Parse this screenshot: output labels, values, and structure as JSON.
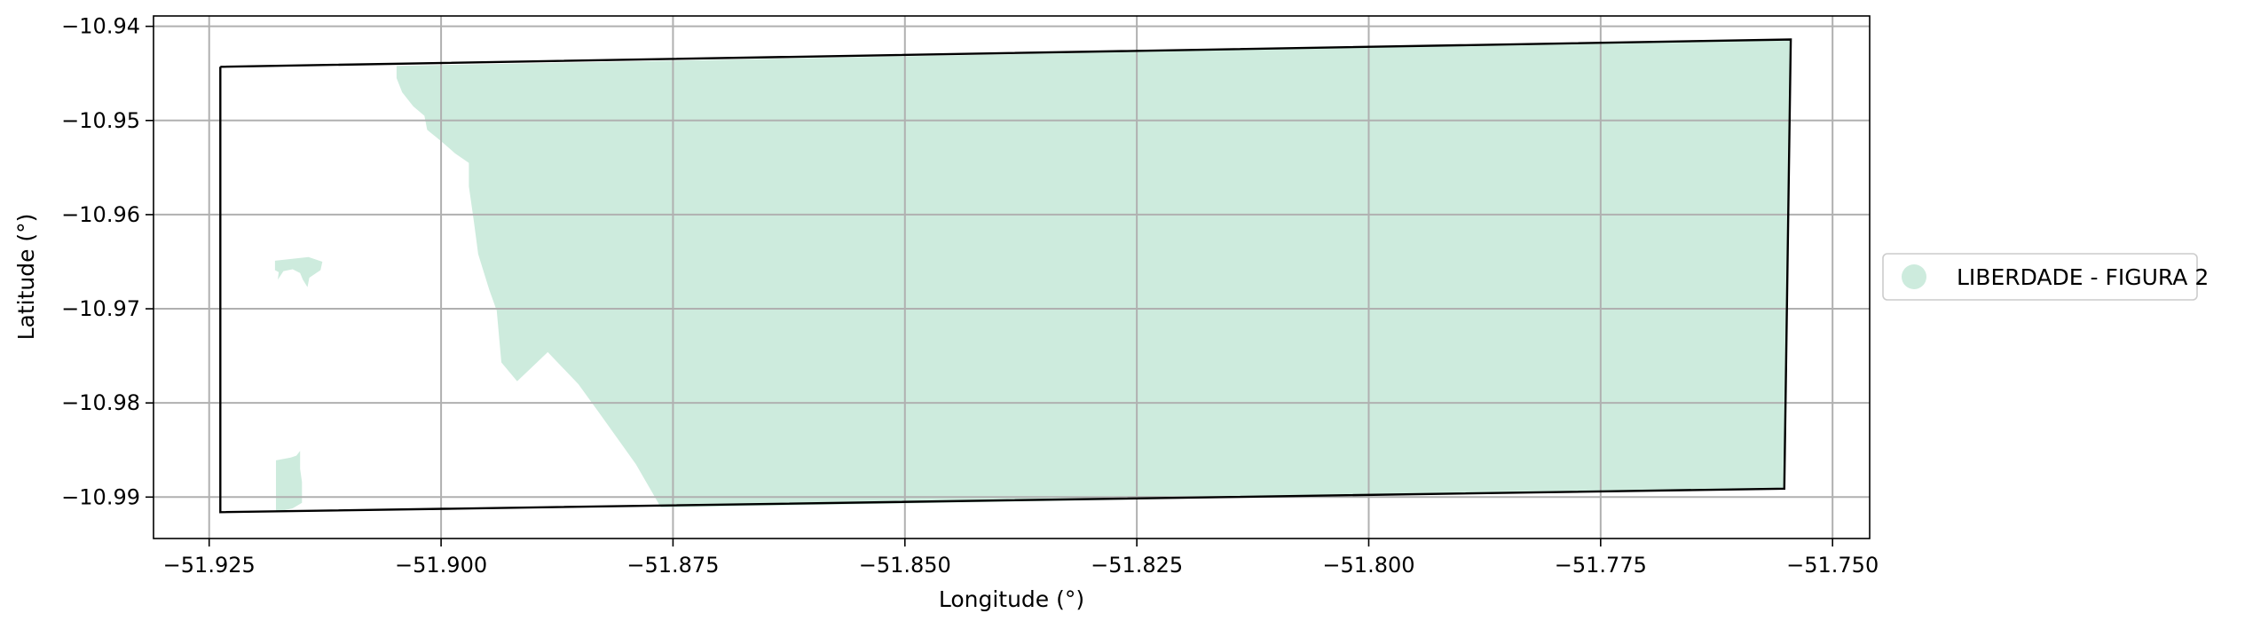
{
  "chart_data": {
    "type": "map",
    "xlabel": "Longitude (°)",
    "ylabel": "Latitude (°)",
    "xlim": [
      -51.931,
      -51.746
    ],
    "ylim": [
      -10.9944,
      -10.9389
    ],
    "xticks": [
      -51.925,
      -51.9,
      -51.875,
      -51.85,
      -51.825,
      -51.8,
      -51.775,
      -51.75
    ],
    "xtick_labels": [
      "−51.925",
      "−51.900",
      "−51.875",
      "−51.850",
      "−51.825",
      "−51.800",
      "−51.775",
      "−51.750"
    ],
    "yticks": [
      -10.94,
      -10.95,
      -10.96,
      -10.97,
      -10.98,
      -10.99
    ],
    "ytick_labels": [
      "−10.94",
      "−10.95",
      "−10.96",
      "−10.97",
      "−10.98",
      "−10.99"
    ],
    "grid": true,
    "legend": {
      "placement": "right-outside",
      "entries": [
        {
          "label": "LIBERDADE - FIGURA 2",
          "color": "#cdebdd"
        }
      ]
    },
    "boundary": {
      "color": "#000000",
      "coordinates": [
        [
          -51.9238,
          -10.9443
        ],
        [
          -51.7545,
          -10.9414
        ],
        [
          -51.7552,
          -10.9891
        ],
        [
          -51.9238,
          -10.9916
        ],
        [
          -51.9238,
          -10.9443
        ]
      ]
    },
    "area_color": "#cdebdd",
    "areas": [
      {
        "name": "main",
        "coordinates": [
          [
            -51.9048,
            -10.9442
          ],
          [
            -51.7545,
            -10.9414
          ],
          [
            -51.7552,
            -10.9891
          ],
          [
            -51.8763,
            -10.9911
          ],
          [
            -51.879,
            -10.9865
          ],
          [
            -51.883,
            -10.981
          ],
          [
            -51.8852,
            -10.978
          ],
          [
            -51.8885,
            -10.9746
          ],
          [
            -51.8902,
            -10.9762
          ],
          [
            -51.8918,
            -10.9777
          ],
          [
            -51.8935,
            -10.9757
          ],
          [
            -51.894,
            -10.9702
          ],
          [
            -51.8948,
            -10.968
          ],
          [
            -51.896,
            -10.9642
          ],
          [
            -51.8965,
            -10.9605
          ],
          [
            -51.897,
            -10.957
          ],
          [
            -51.897,
            -10.9545
          ],
          [
            -51.8985,
            -10.9535
          ],
          [
            -51.9,
            -10.9522
          ],
          [
            -51.9015,
            -10.951
          ],
          [
            -51.9018,
            -10.9495
          ],
          [
            -51.903,
            -10.9485
          ],
          [
            -51.9042,
            -10.947
          ],
          [
            -51.9048,
            -10.9455
          ]
        ]
      },
      {
        "name": "small-island",
        "coordinates": [
          [
            -51.9179,
            -10.9649
          ],
          [
            -51.9143,
            -10.9645
          ],
          [
            -51.9128,
            -10.965
          ],
          [
            -51.913,
            -10.9659
          ],
          [
            -51.9142,
            -10.9667
          ],
          [
            -51.9144,
            -10.9677
          ],
          [
            -51.9149,
            -10.9669
          ],
          [
            -51.9152,
            -10.9662
          ],
          [
            -51.916,
            -10.9658
          ],
          [
            -51.917,
            -10.966
          ],
          [
            -51.9176,
            -10.9669
          ],
          [
            -51.9175,
            -10.9661
          ],
          [
            -51.9179,
            -10.9659
          ]
        ]
      },
      {
        "name": "bottom-left-patch",
        "coordinates": [
          [
            -51.9178,
            -10.9861
          ],
          [
            -51.9162,
            -10.9858
          ],
          [
            -51.9156,
            -10.9856
          ],
          [
            -51.9152,
            -10.9851
          ],
          [
            -51.9152,
            -10.987
          ],
          [
            -51.915,
            -10.9884
          ],
          [
            -51.915,
            -10.9906
          ],
          [
            -51.916,
            -10.9912
          ],
          [
            -51.9178,
            -10.9916
          ]
        ]
      }
    ]
  }
}
